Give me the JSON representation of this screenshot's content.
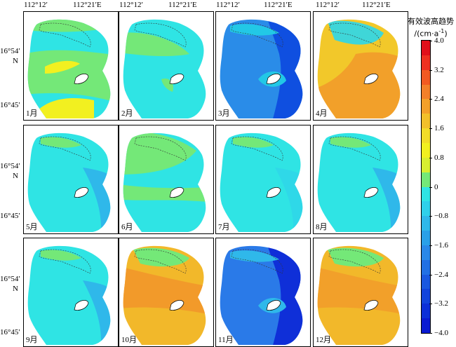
{
  "axis": {
    "lon_ticks": [
      "112°12′",
      "112°21′E"
    ],
    "lat_ticks": [
      "16°54′",
      "N",
      "16°45′"
    ]
  },
  "panels": [
    {
      "label": "1月",
      "base": "#2fe4e4",
      "accent": "#74e878",
      "hi": "#f2f020",
      "mode": "jan"
    },
    {
      "label": "2月",
      "base": "#2fe4e4",
      "accent": "#74e878",
      "hi": "#74e878",
      "mode": "feb"
    },
    {
      "label": "3月",
      "base": "#2a8ce8",
      "accent": "#0f4fe0",
      "hi": "#22c8e6",
      "mode": "mar"
    },
    {
      "label": "4月",
      "base": "#f2c82a",
      "accent": "#f2a02a",
      "hi": "#3fd6d8",
      "mode": "apr"
    },
    {
      "label": "5月",
      "base": "#2fe4e4",
      "accent": "#2fb8ea",
      "hi": "#74e878",
      "mode": "may"
    },
    {
      "label": "6月",
      "base": "#2fe4e4",
      "accent": "#74e878",
      "hi": "#74e878",
      "mode": "jun"
    },
    {
      "label": "7月",
      "base": "#2fe4e4",
      "accent": "#2fd8e8",
      "hi": "#74e878",
      "mode": "jul"
    },
    {
      "label": "8月",
      "base": "#2fe4e4",
      "accent": "#2fb8ea",
      "hi": "#74e878",
      "mode": "aug"
    },
    {
      "label": "9月",
      "base": "#2fe4e4",
      "accent": "#2fb8ea",
      "hi": "#74e878",
      "mode": "sep"
    },
    {
      "label": "10月",
      "base": "#f2b82a",
      "accent": "#f29a2a",
      "hi": "#74e878",
      "mode": "oct"
    },
    {
      "label": "11月",
      "base": "#2a7ae8",
      "accent": "#0f2fd8",
      "hi": "#2fb8ea",
      "mode": "nov"
    },
    {
      "label": "12月",
      "base": "#f2b82a",
      "accent": "#f2a02a",
      "hi": "#74e878",
      "mode": "dec"
    }
  ],
  "colorbar": {
    "title_line1": "有效波高趋势",
    "title_line2": "/(cm·a",
    "title_sup": "-1",
    "title_end": ")",
    "ticks": [
      "4.0",
      "3.2",
      "2.4",
      "1.6",
      "0.8",
      "0",
      "−0.8",
      "−1.6",
      "−2.4",
      "−3.2",
      "−4.0"
    ],
    "colors": [
      "#e0101a",
      "#ee3020",
      "#f25a22",
      "#f3802a",
      "#f3a02a",
      "#f2c02a",
      "#f2dc28",
      "#f2f020",
      "#d8ee30",
      "#74e878",
      "#2fe4e4",
      "#2fd0ea",
      "#2fb8ea",
      "#2aa0e8",
      "#2a88e8",
      "#2270e4",
      "#1a58e0",
      "#1244dc",
      "#0c2fd8",
      "#0a1ad2"
    ]
  }
}
